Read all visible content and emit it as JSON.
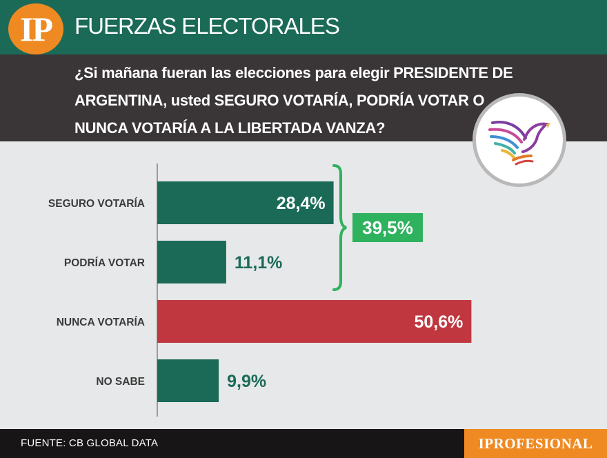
{
  "header": {
    "logo_text": "IP",
    "title": "FUERZAS ELECTORALES",
    "question": "¿Si mañana fueran las elecciones para elegir PRESIDENTE DE ARGENTINA, usted SEGURO VOTARÍA, PODRÍA VOTAR O NUNCA VOTARÍA A LA LIBERTADA VANZA?"
  },
  "emblem": {
    "icon": "eagle-icon"
  },
  "colors": {
    "header_green": "#1b6a58",
    "header_dark": "#3a3536",
    "bar_green": "#1b6a58",
    "bar_red": "#c1373f",
    "bracket_green": "#2fb25e",
    "orange": "#ef8a22"
  },
  "chart_data": {
    "type": "bar",
    "orientation": "horizontal",
    "unit": "%",
    "xlim": [
      0,
      55
    ],
    "categories": [
      "SEGURO VOTARÍA",
      "PODRÍA VOTAR",
      "NUNCA VOTARÍA",
      "NO SABE"
    ],
    "values": [
      28.4,
      11.1,
      50.6,
      9.9
    ],
    "value_labels": [
      "28,4%",
      "11,1%",
      "50,6%",
      "9,9%"
    ],
    "bar_colors": [
      "#1b6a58",
      "#1b6a58",
      "#c1373f",
      "#1b6a58"
    ],
    "group_annotation": {
      "covers": [
        "SEGURO VOTARÍA",
        "PODRÍA VOTAR"
      ],
      "value": 39.5,
      "label": "39,5%"
    },
    "grid": false,
    "legend": "none"
  },
  "footer": {
    "source": "FUENTE: CB GLOBAL DATA",
    "brand": "IPROFESIONAL"
  }
}
